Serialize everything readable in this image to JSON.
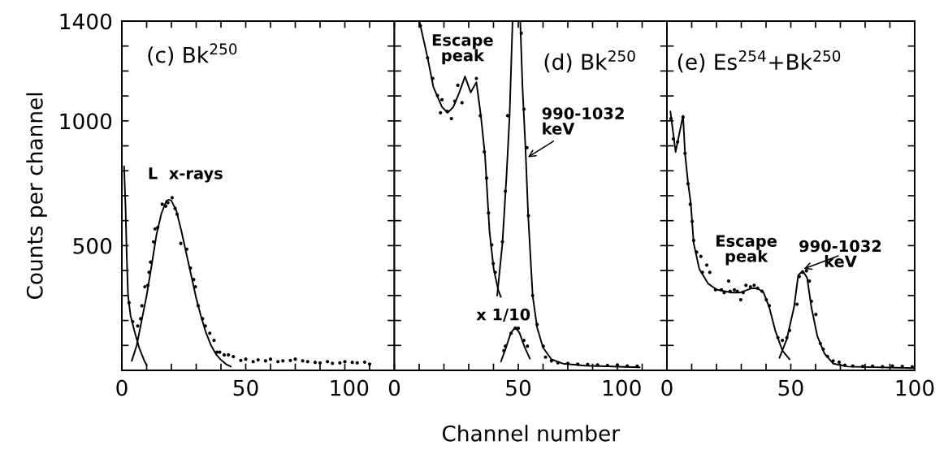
{
  "chart_data": [
    {
      "type": "line",
      "title": "(c) Bk$^{250}$",
      "ylabel": "Counts per channel",
      "xlim": [
        0,
        110
      ],
      "ylim": [
        0,
        1400
      ],
      "xticks": [
        0,
        {
          "value": 10,
          "label": null
        },
        {
          "value": 20,
          "label": null
        },
        {
          "value": 30,
          "label": null
        },
        {
          "value": 40,
          "label": null
        },
        50,
        {
          "value": 60,
          "label": null
        },
        {
          "value": 70,
          "label": null
        },
        {
          "value": 80,
          "label": null
        },
        {
          "value": 90,
          "label": null
        },
        100
      ],
      "yticks": [
        {
          "value": 100,
          "label": null
        },
        {
          "value": 200,
          "label": null
        },
        {
          "value": 300,
          "label": null
        },
        {
          "value": 400,
          "label": null
        },
        500,
        {
          "value": 600,
          "label": null
        },
        {
          "value": 700,
          "label": null
        },
        {
          "value": 800,
          "label": null
        },
        {
          "value": 900,
          "label": null
        },
        1000,
        {
          "value": 1100,
          "label": null
        },
        {
          "value": 1200,
          "label": null
        },
        {
          "value": 1300,
          "label": null
        },
        1400
      ],
      "series": [
        {
          "type": "scatter",
          "marker": "circle",
          "color": "#000000",
          "x": [
            2.9,
            4.4,
            6.4,
            7.6,
            8.1,
            9.3,
            10.5,
            11,
            11.6,
            12.8,
            13.4,
            14.5,
            16.3,
            17.7,
            18.6,
            20.3,
            21.5,
            22.3,
            23.8,
            26.2,
            27.7,
            29,
            29.7,
            30.8,
            32.6,
            33.7,
            35.5,
            37.2,
            38.4,
            39.5,
            41.3,
            43,
            45,
            48,
            50,
            53,
            55,
            58,
            60,
            63,
            65,
            68,
            70,
            73,
            75,
            78,
            80,
            83,
            85,
            88,
            90,
            93,
            95,
            98,
            100
          ],
          "values": [
            271,
            195,
            178,
            207,
            259,
            335,
            341,
            393,
            434,
            515,
            567,
            573,
            666,
            658,
            672,
            692,
            649,
            626,
            509,
            486,
            410,
            364,
            335,
            259,
            207,
            178,
            149,
            120,
            73,
            73,
            62,
            62,
            55,
            40,
            45,
            35,
            42,
            38,
            45,
            35,
            38,
            40,
            45,
            38,
            35,
            32,
            30,
            35,
            28,
            30,
            35,
            32,
            30,
            33,
            25
          ]
        },
        {
          "color": "#000000",
          "x": [
            0.9,
            1.5,
            2,
            2.5,
            3.5,
            5,
            7,
            9,
            10
          ],
          "values": [
            818,
            650,
            450,
            300,
            220,
            160,
            90,
            40,
            20
          ]
        },
        {
          "color": "#000000",
          "x": [
            4,
            6,
            8,
            10,
            12,
            14,
            16,
            18,
            19,
            20,
            22,
            24,
            26,
            28,
            30,
            32,
            34,
            36,
            38,
            40,
            42,
            44
          ],
          "values": [
            38,
            100,
            200,
            300,
            420,
            545,
            630,
            680,
            684,
            680,
            640,
            560,
            470,
            380,
            290,
            215,
            150,
            100,
            65,
            42,
            25,
            15
          ]
        }
      ],
      "annotations": [
        "L  x-rays"
      ]
    },
    {
      "type": "line",
      "title": "(d) Bk$^{250}$",
      "xlabel": "Channel number",
      "tick_labels": "x",
      "xlim": [
        0,
        110
      ],
      "ylim": [
        0,
        1400
      ],
      "xticks": [
        0,
        {
          "value": 10,
          "label": null
        },
        {
          "value": 20,
          "label": null
        },
        {
          "value": 30,
          "label": null
        },
        {
          "value": 40,
          "label": null
        },
        50,
        {
          "value": 60,
          "label": null
        },
        {
          "value": 70,
          "label": null
        },
        {
          "value": 80,
          "label": null
        },
        {
          "value": 90,
          "label": null
        },
        100
      ],
      "yticks": [
        {
          "value": 100,
          "label": null
        },
        {
          "value": 200,
          "label": null
        },
        {
          "value": 300,
          "label": null
        },
        {
          "value": 400,
          "label": null
        },
        {
          "value": 500,
          "label": null
        },
        {
          "value": 600,
          "label": null
        },
        {
          "value": 700,
          "label": null
        },
        {
          "value": 800,
          "label": null
        },
        {
          "value": 900,
          "label": null
        },
        {
          "value": 1000,
          "label": null
        },
        {
          "value": 1100,
          "label": null
        },
        {
          "value": 1200,
          "label": null
        },
        {
          "value": 1300,
          "label": null
        },
        {
          "value": 1400,
          "label": null
        }
      ],
      "series": [
        {
          "type": "scatter",
          "marker": "circle",
          "color": "#000000",
          "x": [
            10.5,
            13.4,
            15.5,
            17.4,
            18.6,
            19.2,
            21.3,
            23,
            24.4,
            25.6,
            27.3,
            33.1,
            34.7,
            36.3,
            37.2,
            38,
            39.3,
            39.9,
            40.7,
            43.6,
            44.8,
            45.7,
            51.2,
            52.3,
            53.5,
            54.1,
            55.8,
            57.6,
            60.1,
            61,
            63.4,
            66,
            70,
            74,
            78,
            82,
            86,
            90,
            94,
            98
          ],
          "values": [
            1381,
            1253,
            1170,
            1102,
            1033,
            1085,
            1038,
            1009,
            1079,
            1143,
            1073,
            1170,
            1021,
            876,
            771,
            631,
            503,
            428,
            393,
            515,
            718,
            1021,
            1352,
            1047,
            893,
            620,
            300,
            184,
            97,
            53,
            38,
            30,
            28,
            25,
            24,
            22,
            20,
            22,
            18,
            17
          ]
        },
        {
          "color": "#000000",
          "x": [
            10.1,
            13.4,
            15.7,
            19.2,
            21.5,
            23.8,
            26.2,
            28.5,
            30.8,
            33.1,
            34.9,
            36.6,
            38.4,
            40.1,
            41.9,
            43
          ],
          "values": [
            1400,
            1253,
            1137,
            1056,
            1033,
            1056,
            1114,
            1178,
            1114,
            1155,
            1021,
            858,
            556,
            405,
            323,
            294
          ]
        },
        {
          "color": "#000000",
          "x": [
            41.5,
            43.6,
            45.3,
            46.5,
            47.7,
            49,
            50.8,
            51.7,
            52.9,
            54,
            55.8,
            57.6,
            60,
            63.4,
            68,
            77,
            99
          ],
          "values": [
            300,
            509,
            788,
            1021,
            1400,
            1400,
            1400,
            1137,
            893,
            620,
            300,
            172,
            91,
            44,
            27,
            19,
            12
          ]
        },
        {
          "type": "scatter",
          "marker": "circle",
          "color": "#000000",
          "x": [
            44.2,
            44.8,
            47.1,
            48.8,
            50,
            52.3,
            53.7
          ],
          "values": [
            79,
            97,
            149,
            169,
            169,
            120,
            97
          ]
        },
        {
          "color": "#000000",
          "x": [
            43,
            45,
            47,
            48.8,
            50.5,
            52.5,
            54.7
          ],
          "values": [
            35,
            90,
            150,
            172,
            150,
            95,
            47
          ]
        }
      ],
      "annotations": [
        "Escape\npeak",
        {
          "text": "990-1032\nkeV",
          "x": 53.5,
          "y": 852
        },
        "x 1/10"
      ]
    },
    {
      "type": "line",
      "title": "(e) Es$^{254}$+Bk$^{250}$",
      "tick_labels": "x",
      "xlim": [
        0,
        100
      ],
      "ylim": [
        0,
        1400
      ],
      "xticks": [
        0,
        {
          "value": 10,
          "label": null
        },
        {
          "value": 20,
          "label": null
        },
        {
          "value": 30,
          "label": null
        },
        {
          "value": 40,
          "label": null
        },
        50,
        {
          "value": 60,
          "label": null
        },
        {
          "value": 70,
          "label": null
        },
        {
          "value": 80,
          "label": null
        },
        {
          "value": 90,
          "label": null
        },
        100
      ],
      "yticks": [
        {
          "value": 100,
          "label": null
        },
        {
          "value": 200,
          "label": null
        },
        {
          "value": 300,
          "label": null
        },
        {
          "value": 400,
          "label": null
        },
        {
          "value": 500,
          "label": null
        },
        {
          "value": 600,
          "label": null
        },
        {
          "value": 700,
          "label": null
        },
        {
          "value": 800,
          "label": null
        },
        {
          "value": 900,
          "label": null
        },
        {
          "value": 1000,
          "label": null
        },
        {
          "value": 1100,
          "label": null
        },
        {
          "value": 1200,
          "label": null
        },
        {
          "value": 1300,
          "label": null
        },
        {
          "value": 1400,
          "label": null
        }
      ],
      "series": [
        {
          "type": "scatter",
          "marker": "circle",
          "color": "#000000",
          "x": [
            1.6,
            2.6,
            4.3,
            6.5,
            7.3,
            8.5,
            9.4,
            10.2,
            10.8,
            12,
            13.7,
            14.3,
            16.1,
            17.3,
            19.6,
            22,
            23.1,
            24.9,
            25.5,
            27.2,
            28.4,
            29.8,
            30.8,
            31.9,
            33.7,
            35.2,
            36.6,
            38.4,
            40.1,
            41.3,
            44.8,
            46.6,
            48.4,
            49.5,
            52.5,
            53.4,
            54.8,
            56.3,
            57.5,
            58.3,
            60.1,
            61.9,
            63.1,
            64.8,
            67.1,
            69.5,
            71.8,
            75,
            79,
            83,
            87,
            91,
            95,
            99
          ],
          "values": [
            1009,
            928,
            916,
            1015,
            870,
            748,
            666,
            597,
            521,
            474,
            457,
            393,
            422,
            393,
            323,
            323,
            312,
            358,
            317,
            323,
            317,
            283,
            312,
            341,
            335,
            341,
            329,
            317,
            283,
            259,
            131,
            120,
            131,
            160,
            265,
            376,
            393,
            399,
            358,
            277,
            224,
            108,
            85,
            56,
            38,
            33,
            21,
            18,
            16,
            17,
            15,
            18,
            16,
            14
          ]
        },
        {
          "color": "#000000",
          "x": [
            1.4,
            3.5,
            6.5,
            7.3,
            8.5,
            9.6,
            10.8,
            13.1,
            16.7,
            20.2,
            26.1,
            29.6,
            34.3,
            36.6,
            39,
            41.3,
            43.7,
            46.6,
            49.5
          ],
          "values": [
            1038,
            876,
            1021,
            870,
            753,
            672,
            509,
            405,
            347,
            323,
            312,
            312,
            329,
            329,
            312,
            253,
            160,
            79,
            44
          ]
        },
        {
          "color": "#000000",
          "x": [
            45.4,
            48.4,
            51.3,
            53,
            54.8,
            56.6,
            58.3,
            60.7,
            63.6,
            67.1,
            73,
            100
          ],
          "values": [
            50,
            126,
            253,
            381,
            399,
            370,
            253,
            137,
            67,
            27,
            15,
            9
          ]
        }
      ],
      "annotations": [
        "Escape\npeak",
        {
          "text": "990-1032\nkeV",
          "x": 54.8,
          "y": 405
        }
      ]
    }
  ]
}
